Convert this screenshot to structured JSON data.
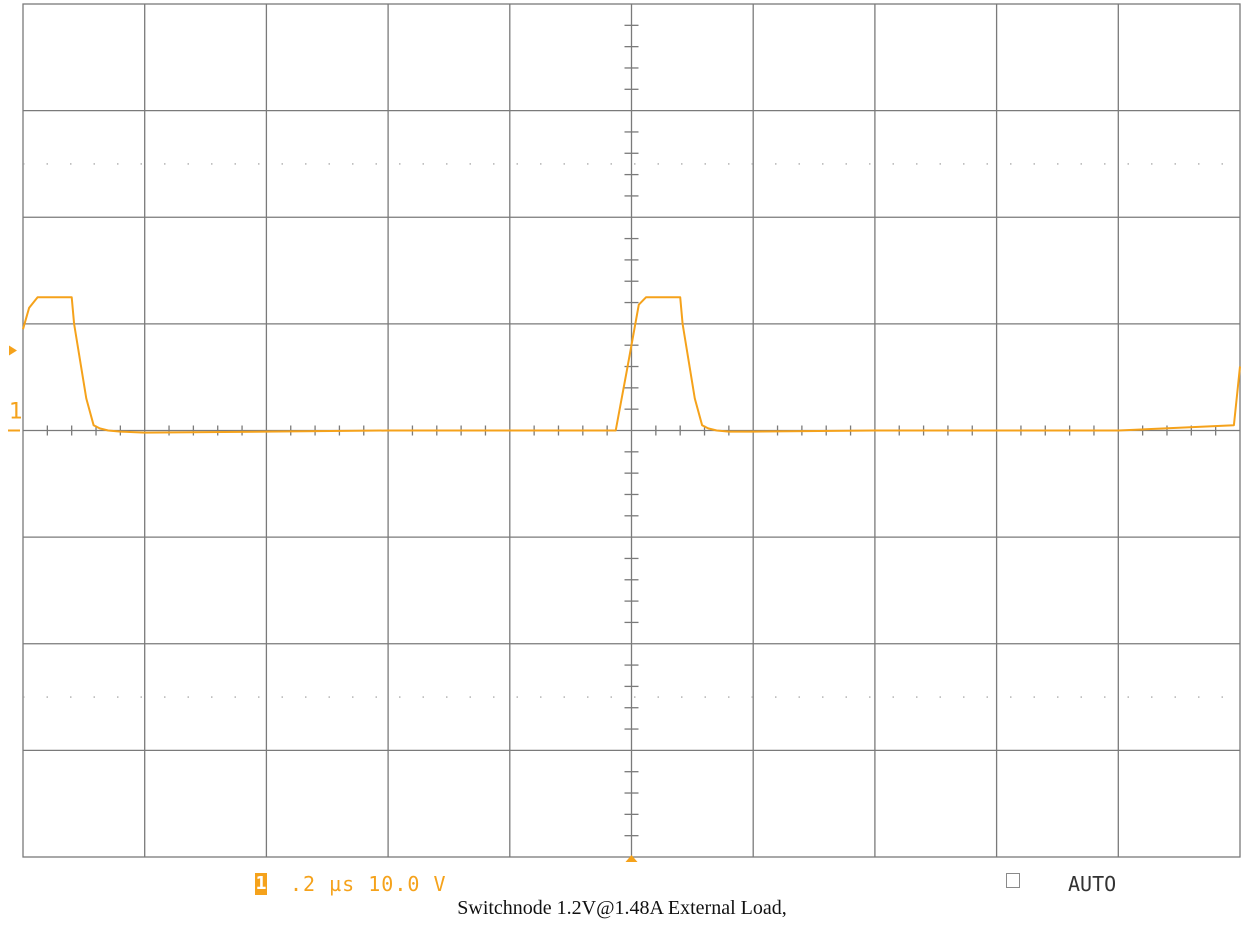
{
  "chart_data": {
    "type": "line",
    "title": "",
    "xlabel": "",
    "ylabel": "",
    "grid": true,
    "x_divisions": 10,
    "y_divisions": 8,
    "x_unit": "div",
    "y_unit": "div",
    "xlim": [
      0,
      10
    ],
    "ylim": [
      -4,
      4
    ],
    "time_per_div": ".2 µs",
    "volts_per_div": "10.0 V",
    "channel": "1",
    "trigger_mode": "AUTO",
    "series": [
      {
        "channel": "1",
        "color": "#f5a21b",
        "x": [
          0.0,
          0.05,
          0.12,
          0.4,
          0.42,
          0.52,
          0.58,
          0.63,
          0.7,
          0.8,
          1.0,
          2.0,
          3.0,
          4.0,
          4.87,
          4.96,
          5.06,
          5.12,
          5.4,
          5.42,
          5.52,
          5.58,
          5.63,
          5.7,
          5.8,
          6.0,
          7.0,
          8.0,
          9.0,
          9.95,
          10.0
        ],
        "y": [
          0.95,
          1.15,
          1.25,
          1.25,
          1.0,
          0.3,
          0.05,
          0.02,
          0.0,
          -0.01,
          -0.02,
          -0.01,
          0.0,
          0.0,
          0.0,
          0.55,
          1.18,
          1.25,
          1.25,
          1.0,
          0.3,
          0.05,
          0.02,
          0.0,
          -0.01,
          -0.01,
          0.0,
          0.0,
          0.0,
          0.05,
          0.6
        ]
      }
    ]
  },
  "status_bar": {
    "channel_badge": "1",
    "timebase_text": ".2 µs 10.0 V",
    "trigger_mode": "AUTO"
  },
  "channel_marker_label": "1",
  "caption": "Switchnode 1.2V@1.48A External Load,"
}
